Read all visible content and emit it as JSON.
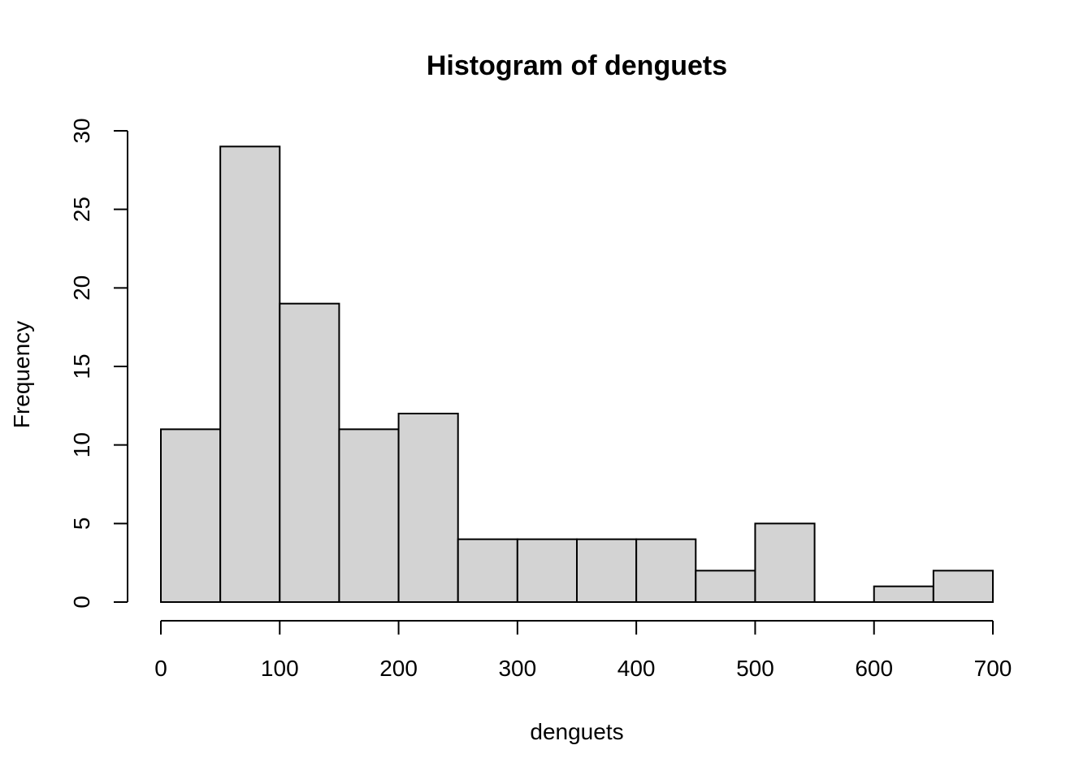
{
  "chart_data": {
    "type": "bar",
    "title": "Histogram of denguets",
    "xlabel": "denguets",
    "ylabel": "Frequency",
    "bin_edges": [
      0,
      50,
      100,
      150,
      200,
      250,
      300,
      350,
      400,
      450,
      500,
      550,
      600,
      650,
      700
    ],
    "values": [
      11,
      29,
      19,
      11,
      12,
      4,
      4,
      4,
      4,
      2,
      5,
      0,
      1,
      2
    ],
    "xlim": [
      0,
      700
    ],
    "ylim": [
      0,
      30
    ],
    "x_ticks": [
      0,
      100,
      200,
      300,
      400,
      500,
      600,
      700
    ],
    "y_ticks": [
      0,
      5,
      10,
      15,
      20,
      25,
      30
    ],
    "bar_color": "#d3d3d3",
    "border_color": "#000000",
    "grid": false
  }
}
